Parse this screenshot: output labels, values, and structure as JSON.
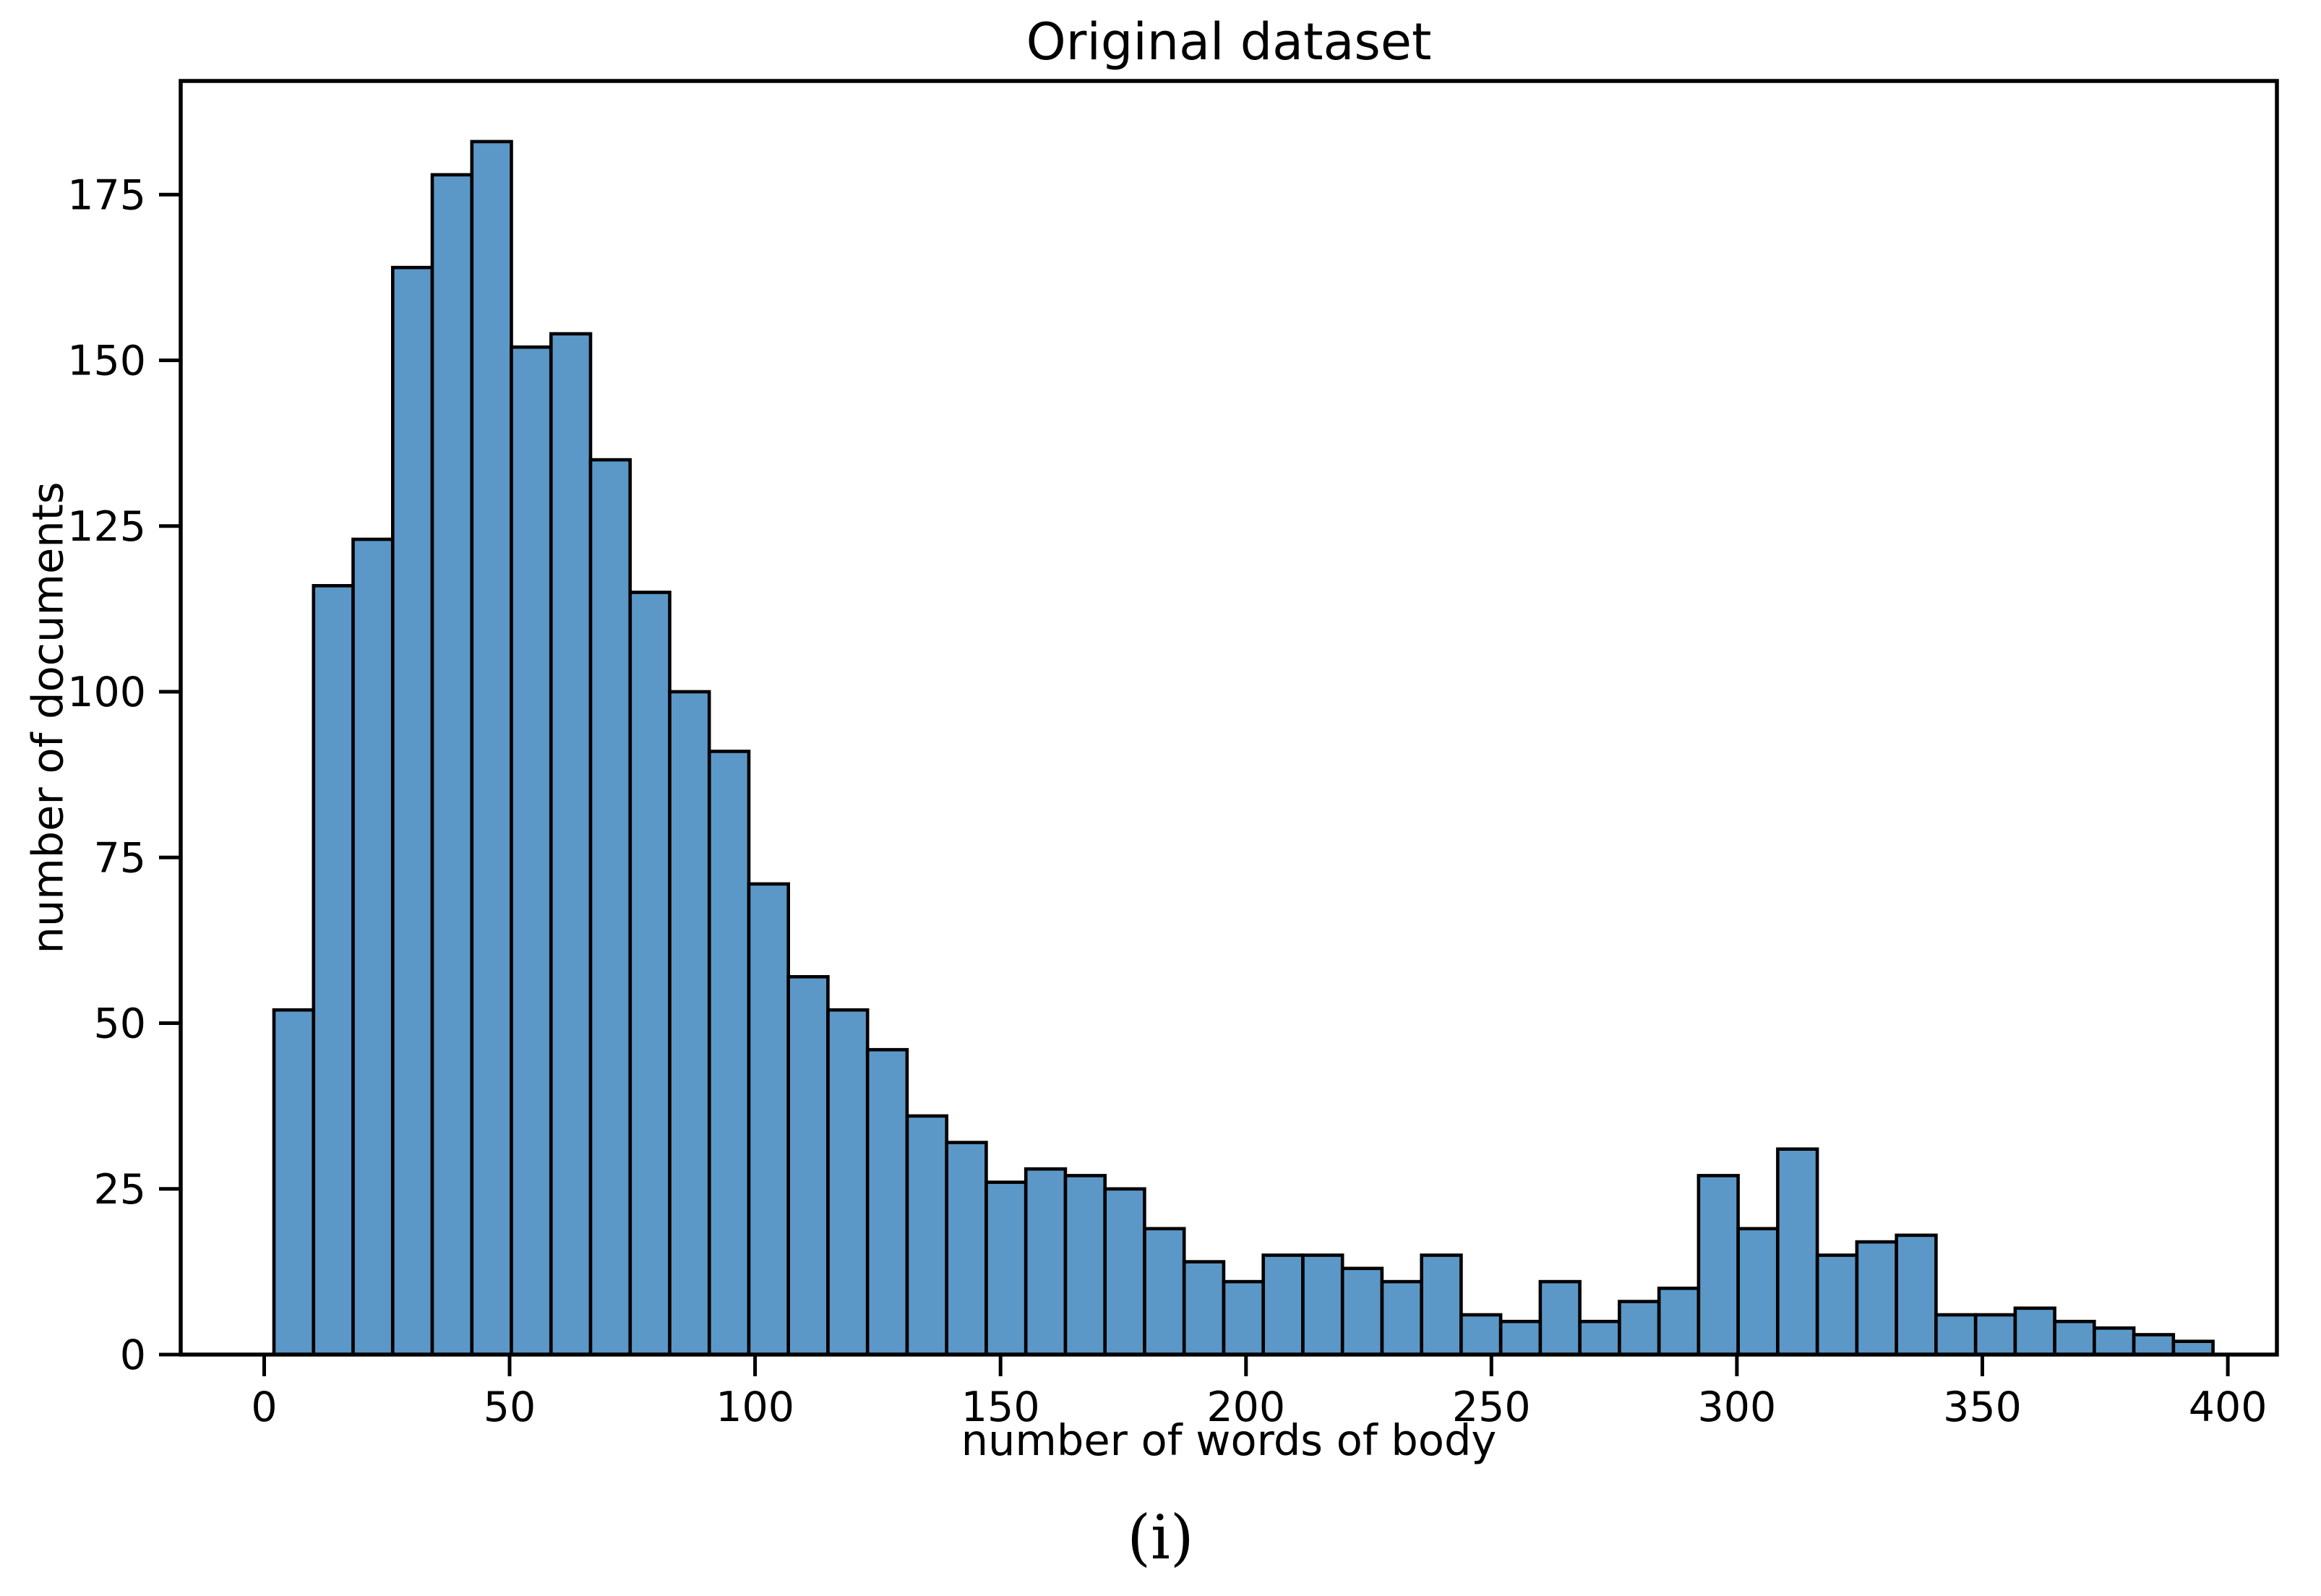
{
  "figure": {
    "caption": "(i)"
  },
  "chart_data": {
    "type": "bar",
    "subtype": "histogram",
    "title": "Original dataset",
    "xlabel": "number of words of body",
    "ylabel": "number of documents",
    "bin_start": 2,
    "bin_width": 8.061,
    "counts": [
      52,
      116,
      123,
      164,
      178,
      183,
      152,
      154,
      135,
      115,
      100,
      91,
      71,
      57,
      52,
      46,
      36,
      32,
      26,
      28,
      27,
      25,
      19,
      14,
      11,
      15,
      15,
      13,
      11,
      15,
      6,
      5,
      11,
      5,
      8,
      10,
      27,
      19,
      31,
      15,
      17,
      18,
      6,
      6,
      7,
      5,
      4,
      3,
      2
    ],
    "x_ticks": [
      0,
      50,
      100,
      150,
      200,
      250,
      300,
      350,
      400
    ],
    "y_ticks": [
      0,
      25,
      50,
      75,
      100,
      125,
      150,
      175
    ],
    "xlim": [
      -17,
      410
    ],
    "ylim": [
      0,
      192.15
    ],
    "grid": false,
    "legend_position": "none",
    "colors": {
      "bar_fill": "#5b98c7",
      "bar_edge": "#000000",
      "spine": "#000000",
      "text": "#000000"
    }
  }
}
